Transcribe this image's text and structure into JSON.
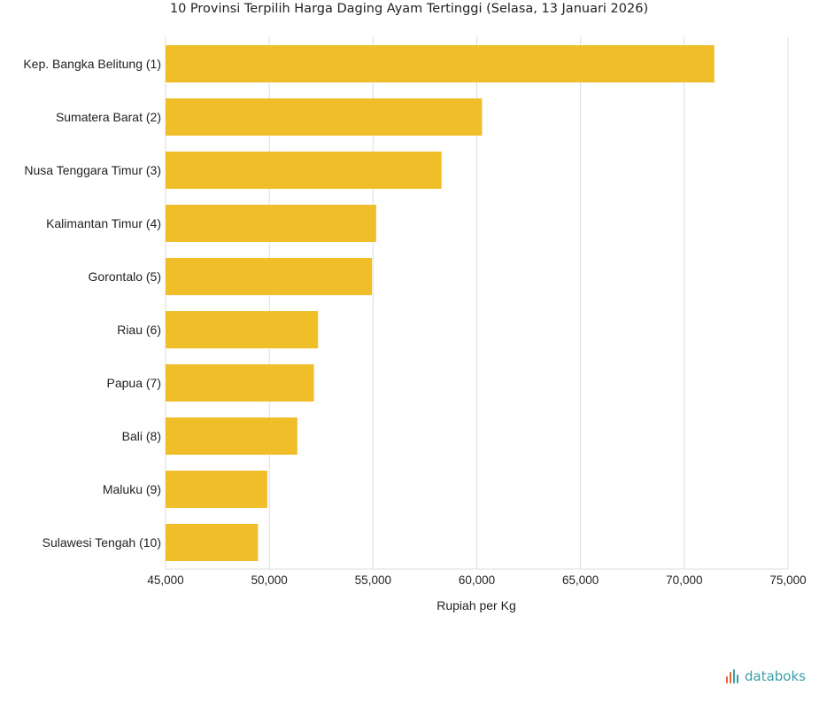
{
  "chart_data": {
    "type": "bar",
    "orientation": "horizontal",
    "title": "10 Provinsi Terpilih Harga Daging Ayam Tertinggi (Selasa, 13 Januari 2026)",
    "xlabel": "Rupiah per Kg",
    "ylabel": "",
    "categories": [
      "Kep. Bangka Belitung (1)",
      "Sumatera Barat (2)",
      "Nusa Tenggara Timur (3)",
      "Kalimantan Timur (4)",
      "Gorontalo (5)",
      "Riau (6)",
      "Papua (7)",
      "Bali (8)",
      "Maluku (9)",
      "Sulawesi Tengah (10)"
    ],
    "values": [
      71450,
      60250,
      58300,
      55150,
      54950,
      52350,
      52150,
      51350,
      49900,
      49450
    ],
    "xlim": [
      45000,
      75000
    ],
    "xticks": [
      45000,
      50000,
      55000,
      60000,
      65000,
      70000,
      75000
    ],
    "xtick_labels": [
      "45,000",
      "50,000",
      "55,000",
      "60,000",
      "65,000",
      "70,000",
      "75,000"
    ],
    "grid": true,
    "legend": "none",
    "bar_color": "#F0BE28"
  },
  "brand": {
    "logo_text": "databoks"
  }
}
